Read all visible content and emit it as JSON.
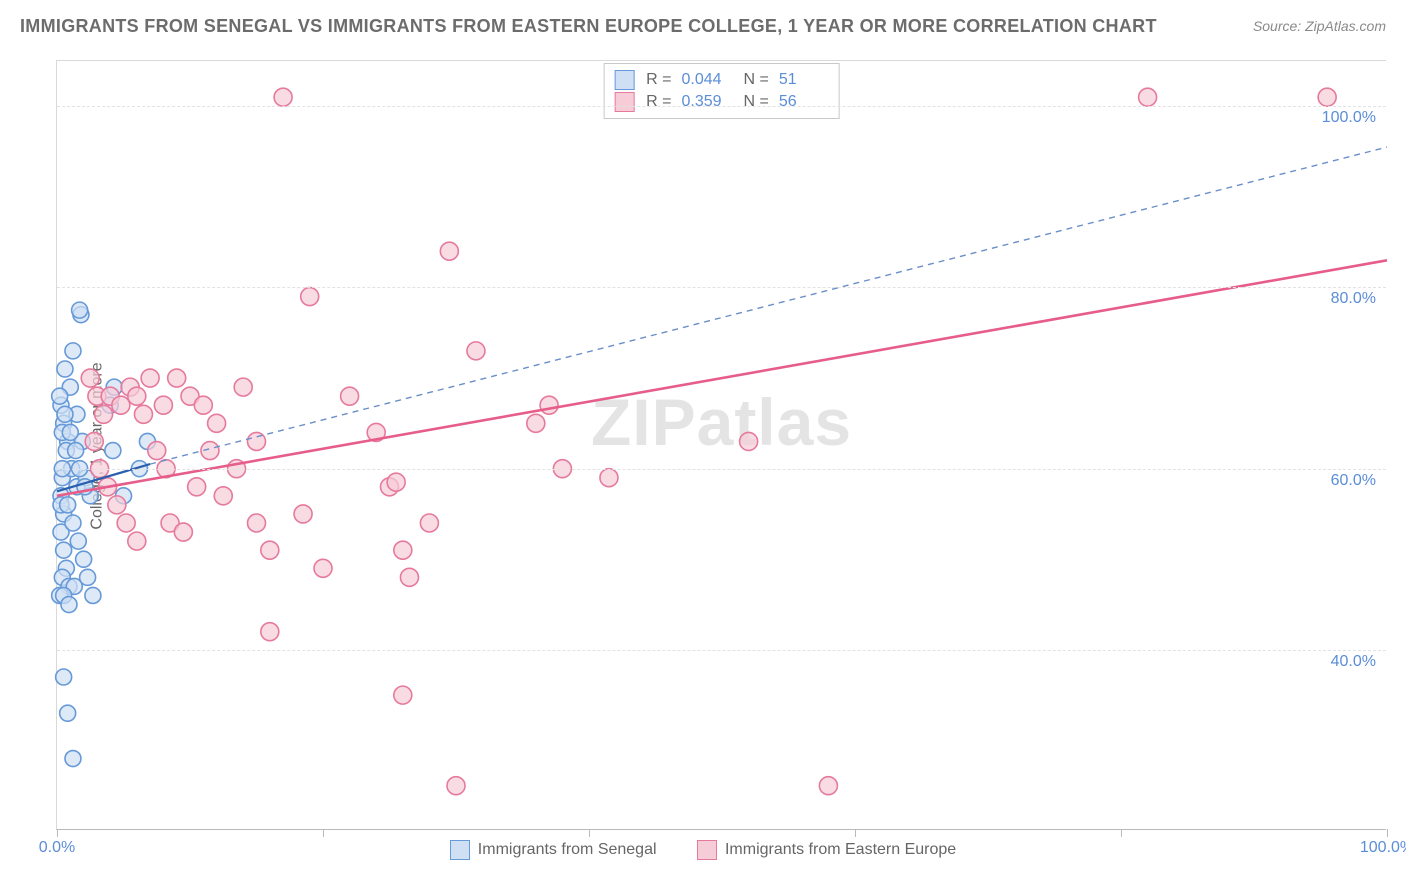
{
  "title": "IMMIGRANTS FROM SENEGAL VS IMMIGRANTS FROM EASTERN EUROPE COLLEGE, 1 YEAR OR MORE CORRELATION CHART",
  "source": "Source: ZipAtlas.com",
  "watermark_bold": "ZIP",
  "watermark_rest": "atlas",
  "y_axis_label": "College, 1 year or more",
  "chart": {
    "type": "scatter",
    "xlim": [
      0,
      100
    ],
    "ylim": [
      20,
      105
    ],
    "y_ticks": [
      40,
      60,
      80,
      100
    ],
    "y_tick_labels": [
      "40.0%",
      "60.0%",
      "80.0%",
      "100.0%"
    ],
    "x_ticks": [
      0,
      20,
      40,
      60,
      80,
      100
    ],
    "x_tick_labels_shown": {
      "0": "0.0%",
      "100": "100.0%"
    },
    "grid_color": "#e2e2e2",
    "background_color": "#ffffff",
    "series": [
      {
        "name": "Immigrants from Senegal",
        "marker_stroke": "#6699d8",
        "marker_fill": "#cfe0f4",
        "marker_fill_opacity": 0.7,
        "marker_radius": 8,
        "line_color": "#2a5fb0",
        "line_dash": "none",
        "line_width": 2.2,
        "R": "0.044",
        "N": "51",
        "trend": {
          "x1": 0,
          "y1": 57.5,
          "x2": 7,
          "y2": 60.5
        },
        "dashed_ext": {
          "x1": 7,
          "y1": 60.5,
          "x2": 100,
          "y2": 95.5,
          "color": "#6a8fc9",
          "dash": "6,5",
          "width": 1.4
        },
        "points": [
          [
            0.3,
            57
          ],
          [
            0.5,
            55
          ],
          [
            0.4,
            59
          ],
          [
            0.8,
            63
          ],
          [
            0.5,
            65
          ],
          [
            0.3,
            67
          ],
          [
            1.0,
            69
          ],
          [
            0.6,
            71
          ],
          [
            1.2,
            73
          ],
          [
            0.4,
            64
          ],
          [
            0.7,
            62
          ],
          [
            1.1,
            60
          ],
          [
            1.5,
            58
          ],
          [
            0.3,
            53
          ],
          [
            0.5,
            51
          ],
          [
            0.7,
            49
          ],
          [
            0.4,
            48
          ],
          [
            0.9,
            47
          ],
          [
            1.3,
            47
          ],
          [
            0.2,
            46
          ],
          [
            1.8,
            77
          ],
          [
            1.7,
            77.5
          ],
          [
            1.5,
            66
          ],
          [
            1.9,
            63
          ],
          [
            2.2,
            59
          ],
          [
            2.5,
            57
          ],
          [
            0.3,
            56
          ],
          [
            0.8,
            56
          ],
          [
            1.2,
            54
          ],
          [
            1.6,
            52
          ],
          [
            2.0,
            50
          ],
          [
            2.3,
            48
          ],
          [
            2.7,
            46
          ],
          [
            0.2,
            68
          ],
          [
            0.6,
            66
          ],
          [
            1.0,
            64
          ],
          [
            1.4,
            62
          ],
          [
            1.7,
            60
          ],
          [
            2.1,
            58
          ],
          [
            0.4,
            60
          ],
          [
            0.5,
            46
          ],
          [
            0.9,
            45
          ],
          [
            4.2,
            62
          ],
          [
            4.0,
            67
          ],
          [
            4.3,
            69
          ],
          [
            5.0,
            57
          ],
          [
            6.2,
            60
          ],
          [
            6.8,
            63
          ],
          [
            0.5,
            37
          ],
          [
            0.8,
            33
          ],
          [
            1.2,
            28
          ]
        ]
      },
      {
        "name": "Immigrants from Eastern Europe",
        "marker_stroke": "#e67a9c",
        "marker_fill": "#f6ccd8",
        "marker_fill_opacity": 0.7,
        "marker_radius": 9,
        "line_color": "#e75d8a",
        "line_dash": "none",
        "line_width": 2.6,
        "R": "0.359",
        "N": "56",
        "trend": {
          "x1": 0,
          "y1": 57,
          "x2": 100,
          "y2": 83
        },
        "points": [
          [
            2.5,
            70
          ],
          [
            3.0,
            68
          ],
          [
            3.5,
            66
          ],
          [
            4.0,
            68
          ],
          [
            4.8,
            67
          ],
          [
            5.5,
            69
          ],
          [
            6.0,
            68
          ],
          [
            6.5,
            66
          ],
          [
            7.0,
            70
          ],
          [
            8.0,
            67
          ],
          [
            9.0,
            70
          ],
          [
            10.0,
            68
          ],
          [
            11.0,
            67
          ],
          [
            12.0,
            65
          ],
          [
            2.8,
            63
          ],
          [
            3.2,
            60
          ],
          [
            3.8,
            58
          ],
          [
            4.5,
            56
          ],
          [
            5.2,
            54
          ],
          [
            6.0,
            52
          ],
          [
            8.5,
            54
          ],
          [
            9.5,
            53
          ],
          [
            10.5,
            58
          ],
          [
            12.5,
            57
          ],
          [
            13.5,
            60
          ],
          [
            15.0,
            63
          ],
          [
            15.0,
            54
          ],
          [
            16.0,
            51
          ],
          [
            19.0,
            79
          ],
          [
            18.5,
            55
          ],
          [
            20.0,
            49
          ],
          [
            24.0,
            64
          ],
          [
            25.0,
            58
          ],
          [
            25.5,
            58.5
          ],
          [
            26.0,
            51
          ],
          [
            16.0,
            42
          ],
          [
            26.5,
            48
          ],
          [
            26.0,
            35
          ],
          [
            30.0,
            25
          ],
          [
            29.5,
            84
          ],
          [
            31.5,
            73
          ],
          [
            36.0,
            65
          ],
          [
            37.0,
            67
          ],
          [
            38.0,
            60
          ],
          [
            41.5,
            59
          ],
          [
            52.0,
            63
          ],
          [
            58.0,
            25
          ],
          [
            17.0,
            101
          ],
          [
            82.0,
            101
          ],
          [
            95.5,
            101
          ],
          [
            7.5,
            62
          ],
          [
            8.2,
            60
          ],
          [
            11.5,
            62
          ],
          [
            14.0,
            69
          ],
          [
            22.0,
            68
          ],
          [
            28.0,
            54
          ]
        ]
      }
    ]
  },
  "legend_top": {
    "label_R": "R =",
    "label_N": "N ="
  },
  "legend_bottom": [
    {
      "swatch_stroke": "#6699d8",
      "swatch_fill": "#cfe0f4",
      "label": "Immigrants from Senegal"
    },
    {
      "swatch_stroke": "#e67a9c",
      "swatch_fill": "#f6ccd8",
      "label": "Immigrants from Eastern Europe"
    }
  ]
}
